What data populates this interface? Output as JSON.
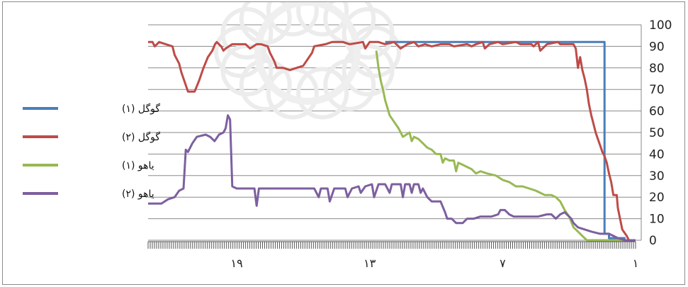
{
  "chart_data": {
    "type": "line",
    "title": "",
    "xlabel": "",
    "ylabel": "",
    "ylim": [
      0,
      100
    ],
    "yticks": [
      0,
      10,
      20,
      30,
      40,
      50,
      60,
      70,
      80,
      90,
      100
    ],
    "y_axis_side": "right",
    "x_reversed": true,
    "xlim": [
      1,
      23
    ],
    "xtick_labels": [
      {
        "x": 1,
        "label": "١"
      },
      {
        "x": 7,
        "label": "٧"
      },
      {
        "x": 13,
        "label": "١٣"
      },
      {
        "x": 19,
        "label": "١٩"
      }
    ],
    "grid": "horizontal",
    "legend_position": "left",
    "series": [
      {
        "name": "گوگل (۱)",
        "color": "#4a7ebb",
        "points": [
          [
            1.5,
            0
          ],
          [
            1.5,
            1
          ],
          [
            2.2,
            1
          ],
          [
            2.2,
            3
          ],
          [
            2.4,
            3
          ],
          [
            2.4,
            92
          ],
          [
            12.3,
            92
          ]
        ]
      },
      {
        "name": "گوگل (۲)",
        "color": "#be4b48",
        "points": [
          [
            1.3,
            0
          ],
          [
            1.4,
            2
          ],
          [
            1.6,
            5
          ],
          [
            1.7,
            10
          ],
          [
            1.8,
            15
          ],
          [
            1.85,
            21
          ],
          [
            2.0,
            21
          ],
          [
            2.1,
            27
          ],
          [
            2.2,
            31
          ],
          [
            2.3,
            36
          ],
          [
            2.4,
            39
          ],
          [
            2.5,
            41
          ],
          [
            2.6,
            44
          ],
          [
            2.7,
            47
          ],
          [
            2.8,
            50
          ],
          [
            2.9,
            54
          ],
          [
            3.0,
            58
          ],
          [
            3.1,
            63
          ],
          [
            3.2,
            70
          ],
          [
            3.3,
            75
          ],
          [
            3.4,
            79
          ],
          [
            3.5,
            85
          ],
          [
            3.6,
            80
          ],
          [
            3.7,
            89
          ],
          [
            3.8,
            91
          ],
          [
            4.4,
            91
          ],
          [
            4.5,
            92
          ],
          [
            5.0,
            91
          ],
          [
            5.3,
            88
          ],
          [
            5.4,
            92
          ],
          [
            5.6,
            90
          ],
          [
            5.7,
            91
          ],
          [
            6.2,
            91
          ],
          [
            6.4,
            92
          ],
          [
            7.0,
            91
          ],
          [
            7.2,
            92
          ],
          [
            7.6,
            91
          ],
          [
            7.8,
            89
          ],
          [
            7.9,
            92
          ],
          [
            8.2,
            91
          ],
          [
            8.4,
            90
          ],
          [
            8.6,
            91
          ],
          [
            9.2,
            90
          ],
          [
            9.4,
            91
          ],
          [
            9.8,
            91
          ],
          [
            10.2,
            90
          ],
          [
            10.5,
            91
          ],
          [
            10.8,
            90
          ],
          [
            11.0,
            92
          ],
          [
            11.3,
            91
          ],
          [
            11.6,
            89
          ],
          [
            11.9,
            92
          ],
          [
            12.3,
            91
          ],
          [
            12.6,
            92
          ],
          [
            13.0,
            92
          ],
          [
            13.2,
            89
          ],
          [
            13.3,
            92
          ],
          [
            13.9,
            91
          ],
          [
            14.2,
            92
          ],
          [
            14.7,
            92
          ],
          [
            15.0,
            91
          ],
          [
            15.5,
            90
          ],
          [
            15.6,
            87
          ],
          [
            15.8,
            84
          ],
          [
            16.0,
            81
          ],
          [
            16.3,
            80
          ],
          [
            16.6,
            79
          ],
          [
            16.9,
            80
          ],
          [
            17.2,
            80
          ],
          [
            17.3,
            83
          ],
          [
            17.5,
            87
          ],
          [
            17.6,
            90
          ],
          [
            17.9,
            91
          ],
          [
            18.1,
            91
          ],
          [
            18.4,
            89
          ],
          [
            18.6,
            91
          ],
          [
            19.2,
            91
          ],
          [
            19.5,
            89
          ],
          [
            19.6,
            88
          ],
          [
            19.7,
            90
          ],
          [
            19.9,
            92
          ],
          [
            19.98,
            91
          ],
          [
            20.1,
            88
          ],
          [
            20.3,
            85
          ],
          [
            20.5,
            80
          ],
          [
            20.7,
            74
          ],
          [
            20.9,
            69
          ],
          [
            21.2,
            69
          ],
          [
            21.3,
            72
          ],
          [
            21.5,
            78
          ],
          [
            21.6,
            82
          ],
          [
            21.8,
            86
          ],
          [
            21.9,
            90
          ],
          [
            22.2,
            91
          ],
          [
            22.5,
            92
          ],
          [
            22.7,
            90
          ],
          [
            22.8,
            92
          ],
          [
            23,
            92
          ]
        ]
      },
      {
        "name": "یاهو (۱)",
        "color": "#98b954",
        "points": [
          [
            1.1,
            0
          ],
          [
            2.3,
            0
          ],
          [
            2.7,
            0
          ],
          [
            3.2,
            0
          ],
          [
            3.4,
            2
          ],
          [
            3.6,
            4
          ],
          [
            3.8,
            6
          ],
          [
            4.0,
            11
          ],
          [
            4.2,
            14
          ],
          [
            4.4,
            18
          ],
          [
            4.6,
            20
          ],
          [
            4.8,
            21
          ],
          [
            5.1,
            21
          ],
          [
            5.3,
            22
          ],
          [
            5.5,
            23
          ],
          [
            5.8,
            24
          ],
          [
            6.1,
            25
          ],
          [
            6.4,
            25
          ],
          [
            6.7,
            27
          ],
          [
            7.0,
            28
          ],
          [
            7.3,
            30
          ],
          [
            7.7,
            31
          ],
          [
            8.0,
            32
          ],
          [
            8.2,
            31
          ],
          [
            8.4,
            33
          ],
          [
            8.6,
            34
          ],
          [
            8.8,
            35
          ],
          [
            9.0,
            36
          ],
          [
            9.1,
            32
          ],
          [
            9.2,
            37
          ],
          [
            9.4,
            37
          ],
          [
            9.6,
            38
          ],
          [
            9.7,
            36
          ],
          [
            9.8,
            40
          ],
          [
            10.0,
            40
          ],
          [
            10.2,
            42
          ],
          [
            10.4,
            43
          ],
          [
            10.6,
            45
          ],
          [
            10.8,
            47
          ],
          [
            11.0,
            48
          ],
          [
            11.1,
            46
          ],
          [
            11.2,
            50
          ],
          [
            11.5,
            48
          ],
          [
            11.7,
            52
          ],
          [
            11.9,
            55
          ],
          [
            12.1,
            58
          ],
          [
            12.3,
            65
          ],
          [
            12.4,
            70
          ],
          [
            12.5,
            74
          ],
          [
            12.6,
            80
          ],
          [
            12.7,
            88
          ]
        ]
      },
      {
        "name": "یاهو (۲)",
        "color": "#7d5fa0",
        "points": [
          [
            1.0,
            0
          ],
          [
            1.2,
            0
          ],
          [
            1.5,
            0
          ],
          [
            1.8,
            1
          ],
          [
            2.0,
            2
          ],
          [
            2.2,
            3
          ],
          [
            2.6,
            3
          ],
          [
            3.0,
            4
          ],
          [
            3.3,
            5
          ],
          [
            3.6,
            6
          ],
          [
            3.8,
            8
          ],
          [
            3.9,
            10
          ],
          [
            4.0,
            11
          ],
          [
            4.2,
            13
          ],
          [
            4.4,
            12
          ],
          [
            4.6,
            10
          ],
          [
            4.8,
            12
          ],
          [
            5.0,
            12
          ],
          [
            5.4,
            11
          ],
          [
            6.0,
            11
          ],
          [
            6.5,
            11
          ],
          [
            6.7,
            12
          ],
          [
            6.9,
            14
          ],
          [
            7.1,
            14
          ],
          [
            7.2,
            12
          ],
          [
            7.5,
            11
          ],
          [
            8.0,
            11
          ],
          [
            8.3,
            10
          ],
          [
            8.6,
            10
          ],
          [
            8.8,
            8
          ],
          [
            9.1,
            8
          ],
          [
            9.3,
            10
          ],
          [
            9.5,
            10
          ],
          [
            9.6,
            13
          ],
          [
            9.8,
            18
          ],
          [
            10.0,
            18
          ],
          [
            10.2,
            18
          ],
          [
            10.4,
            20
          ],
          [
            10.6,
            24
          ],
          [
            10.7,
            22
          ],
          [
            10.8,
            26
          ],
          [
            11.0,
            26
          ],
          [
            11.1,
            22
          ],
          [
            11.2,
            26
          ],
          [
            11.4,
            26
          ],
          [
            11.5,
            20
          ],
          [
            11.6,
            26
          ],
          [
            12.0,
            26
          ],
          [
            12.1,
            22
          ],
          [
            12.3,
            26
          ],
          [
            12.6,
            26
          ],
          [
            12.8,
            20
          ],
          [
            12.9,
            26
          ],
          [
            13.2,
            25
          ],
          [
            13.4,
            22
          ],
          [
            13.5,
            25
          ],
          [
            13.8,
            24
          ],
          [
            14.0,
            20
          ],
          [
            14.1,
            24
          ],
          [
            14.3,
            24
          ],
          [
            14.6,
            24
          ],
          [
            14.8,
            18
          ],
          [
            14.9,
            24
          ],
          [
            15.2,
            24
          ],
          [
            15.3,
            20
          ],
          [
            15.5,
            24
          ],
          [
            15.9,
            24
          ],
          [
            16.3,
            24
          ],
          [
            16.7,
            24
          ],
          [
            17.1,
            24
          ],
          [
            17.5,
            24
          ],
          [
            17.9,
            24
          ],
          [
            18.0,
            24
          ],
          [
            18.1,
            16
          ],
          [
            18.2,
            24
          ],
          [
            18.6,
            24
          ],
          [
            19.0,
            24
          ],
          [
            19.2,
            25
          ],
          [
            19.3,
            56
          ],
          [
            19.4,
            58
          ],
          [
            19.5,
            52
          ],
          [
            19.6,
            50
          ],
          [
            19.8,
            49
          ],
          [
            20.0,
            46
          ],
          [
            20.2,
            48
          ],
          [
            20.4,
            49
          ],
          [
            20.8,
            48
          ],
          [
            21.0,
            45
          ],
          [
            21.1,
            43
          ],
          [
            21.2,
            41
          ],
          [
            21.3,
            42
          ],
          [
            21.4,
            24
          ],
          [
            21.6,
            23
          ],
          [
            21.8,
            20
          ],
          [
            22.1,
            19
          ],
          [
            22.4,
            17
          ],
          [
            22.8,
            17
          ],
          [
            23,
            17
          ]
        ]
      }
    ]
  }
}
